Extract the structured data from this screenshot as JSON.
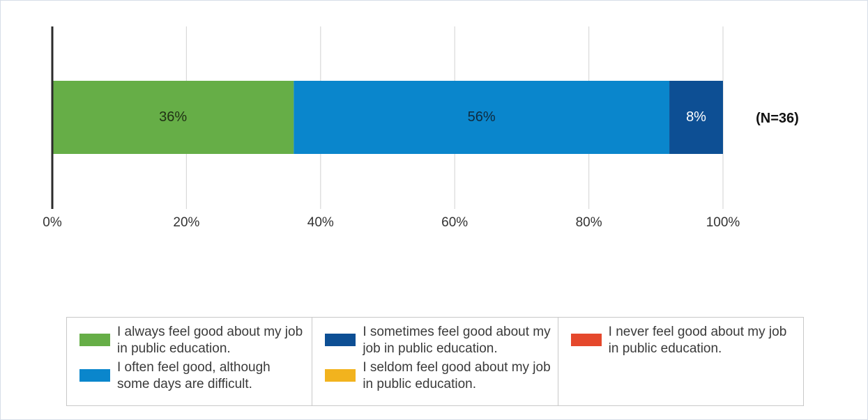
{
  "chart_data": {
    "type": "bar",
    "orientation": "horizontal",
    "stacked": true,
    "categories": [
      ""
    ],
    "series": [
      {
        "name": "I always feel good about my job in public education.",
        "values": [
          36
        ],
        "color": "#66ae47",
        "label": "36%",
        "label_color": "#1f2f14"
      },
      {
        "name": "I often feel good, although some days are difficult.",
        "values": [
          56
        ],
        "color": "#0a86cc",
        "label": "56%",
        "label_color": "#0f2a3e"
      },
      {
        "name": "I sometimes feel good about my job in public education.",
        "values": [
          8
        ],
        "color": "#0d4f94",
        "label": "8%",
        "label_color": "#ffffff"
      },
      {
        "name": "I seldom feel good about my job in public education.",
        "values": [
          0
        ],
        "color": "#f2b31e"
      },
      {
        "name": "I never feel good about my job in public education.",
        "values": [
          0
        ],
        "color": "#e5482c"
      }
    ],
    "x_ticks": [
      "0%",
      "20%",
      "40%",
      "60%",
      "80%",
      "100%"
    ],
    "xlim": [
      0,
      100
    ],
    "grid": true,
    "annotation": "(N=36)",
    "legend_position": "bottom"
  }
}
